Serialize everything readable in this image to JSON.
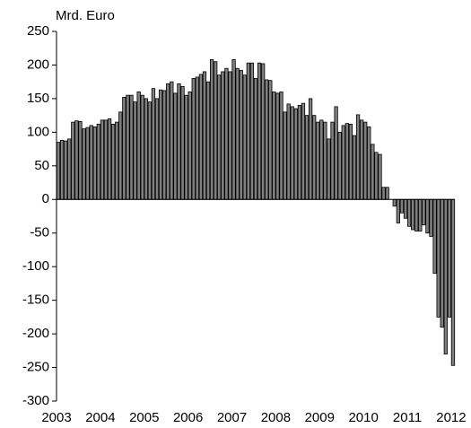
{
  "chart_data": {
    "type": "bar",
    "y_axis_label": "Mrd. Euro",
    "categories": [
      "2003",
      null,
      null,
      null,
      null,
      null,
      null,
      null,
      null,
      null,
      null,
      null,
      "2004",
      null,
      null,
      null,
      null,
      null,
      null,
      null,
      null,
      null,
      null,
      null,
      "2005",
      null,
      null,
      null,
      null,
      null,
      null,
      null,
      null,
      null,
      null,
      null,
      "2006",
      null,
      null,
      null,
      null,
      null,
      null,
      null,
      null,
      null,
      null,
      null,
      "2007",
      null,
      null,
      null,
      null,
      null,
      null,
      null,
      null,
      null,
      null,
      null,
      "2008",
      null,
      null,
      null,
      null,
      null,
      null,
      null,
      null,
      null,
      null,
      null,
      "2009",
      null,
      null,
      null,
      null,
      null,
      null,
      null,
      null,
      null,
      null,
      null,
      "2010",
      null,
      null,
      null,
      null,
      null,
      null,
      null,
      null,
      null,
      null,
      null,
      "2011",
      null,
      null,
      null,
      null,
      null,
      null,
      null,
      null,
      null,
      null,
      null,
      "2012"
    ],
    "values": [
      85,
      88,
      87,
      90,
      115,
      117,
      116,
      105,
      107,
      110,
      108,
      112,
      118,
      118,
      120,
      112,
      115,
      130,
      152,
      155,
      155,
      145,
      160,
      155,
      150,
      145,
      165,
      150,
      163,
      162,
      172,
      175,
      158,
      172,
      168,
      155,
      160,
      180,
      182,
      186,
      190,
      175,
      208,
      205,
      185,
      190,
      195,
      190,
      208,
      195,
      192,
      185,
      203,
      203,
      180,
      203,
      202,
      178,
      177,
      160,
      158,
      160,
      130,
      142,
      138,
      135,
      140,
      143,
      125,
      150,
      125,
      115,
      118,
      115,
      90,
      115,
      138,
      100,
      110,
      113,
      112,
      95,
      126,
      118,
      115,
      108,
      82,
      70,
      67,
      18,
      18,
      0,
      -10,
      -35,
      -20,
      -28,
      -40,
      -45,
      -47,
      -47,
      -38,
      -50,
      -55,
      -110,
      -175,
      -190,
      -230,
      -175,
      -247
    ],
    "color": "#7f7f7f",
    "ylim": [
      -300,
      250
    ],
    "yticks": [
      -300,
      -250,
      -200,
      -150,
      -100,
      -50,
      0,
      50,
      100,
      150,
      200,
      250
    ],
    "grid": false
  }
}
